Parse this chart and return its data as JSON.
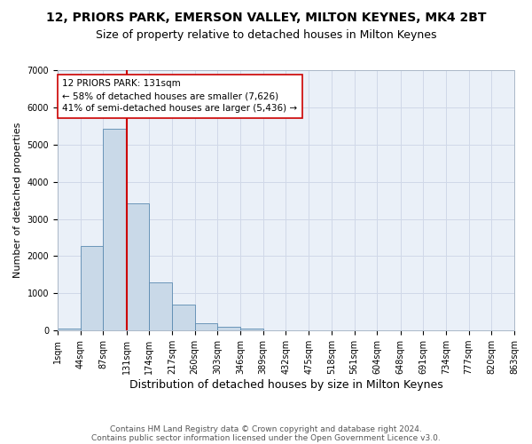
{
  "title1": "12, PRIORS PARK, EMERSON VALLEY, MILTON KEYNES, MK4 2BT",
  "title2": "Size of property relative to detached houses in Milton Keynes",
  "xlabel": "Distribution of detached houses by size in Milton Keynes",
  "ylabel": "Number of detached properties",
  "footer1": "Contains HM Land Registry data © Crown copyright and database right 2024.",
  "footer2": "Contains public sector information licensed under the Open Government Licence v3.0.",
  "annotation_line1": "12 PRIORS PARK: 131sqm",
  "annotation_line2": "← 58% of detached houses are smaller (7,626)",
  "annotation_line3": "41% of semi-detached houses are larger (5,436) →",
  "bar_left_edges": [
    1,
    44,
    87,
    131,
    174,
    217,
    260,
    303,
    346,
    389,
    432,
    475,
    518,
    561,
    604,
    648,
    691,
    734,
    777,
    820
  ],
  "bar_heights": [
    55,
    2280,
    5420,
    3420,
    1300,
    690,
    195,
    100,
    55,
    5,
    0,
    0,
    0,
    0,
    0,
    0,
    0,
    0,
    0,
    0
  ],
  "bin_width": 43,
  "bar_color": "#c9d9e8",
  "bar_edge_color": "#5a8ab0",
  "vline_color": "#cc0000",
  "vline_x": 131,
  "annotation_box_color": "#ffffff",
  "annotation_box_edge": "#cc0000",
  "ylim": [
    0,
    7000
  ],
  "xlim": [
    1,
    863
  ],
  "yticks": [
    0,
    1000,
    2000,
    3000,
    4000,
    5000,
    6000,
    7000
  ],
  "xtick_labels": [
    "1sqm",
    "44sqm",
    "87sqm",
    "131sqm",
    "174sqm",
    "217sqm",
    "260sqm",
    "303sqm",
    "346sqm",
    "389sqm",
    "432sqm",
    "475sqm",
    "518sqm",
    "561sqm",
    "604sqm",
    "648sqm",
    "691sqm",
    "734sqm",
    "777sqm",
    "820sqm",
    "863sqm"
  ],
  "xtick_positions": [
    1,
    44,
    87,
    131,
    174,
    217,
    260,
    303,
    346,
    389,
    432,
    475,
    518,
    561,
    604,
    648,
    691,
    734,
    777,
    820,
    863
  ],
  "grid_color": "#d0d8e8",
  "background_color": "#eaf0f8",
  "title1_fontsize": 10,
  "title2_fontsize": 9,
  "ylabel_fontsize": 8,
  "xlabel_fontsize": 9,
  "tick_fontsize": 7,
  "annotation_fontsize": 7.5,
  "footer_fontsize": 6.5
}
